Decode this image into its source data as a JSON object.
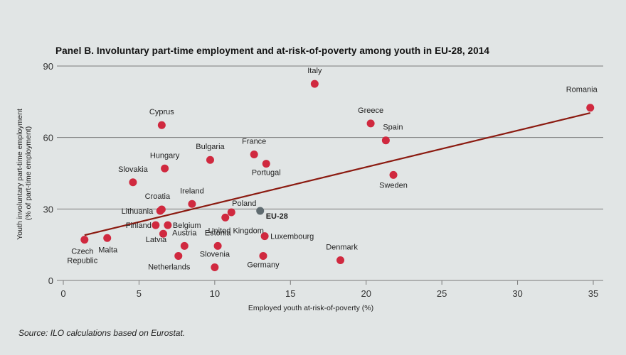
{
  "chart_data": {
    "type": "scatter",
    "title": "Panel B.  Involuntary part-time employment and at-risk-of-poverty among youth in EU-28, 2014",
    "xlabel": "Employed youth at-risk-of-poverty (%)",
    "ylabel_lines": [
      "Youth involuntary part-time employment",
      "(% of part-time employment)"
    ],
    "xlim": [
      0,
      35
    ],
    "ylim": [
      0,
      90
    ],
    "xticks": [
      0,
      5,
      10,
      15,
      20,
      25,
      30,
      35
    ],
    "yticks": [
      0,
      30,
      60,
      90
    ],
    "grid": "horizontal",
    "colors": {
      "points": "#d0293f",
      "eu28": "#5f6b70",
      "trend": "#8b1a10",
      "grid": "#7a7a7a"
    },
    "points": [
      {
        "name": "Italy",
        "x": 16.6,
        "y": 82.5
      },
      {
        "name": "Romania",
        "x": 34.8,
        "y": 72.5
      },
      {
        "name": "Greece",
        "x": 20.3,
        "y": 65.9
      },
      {
        "name": "Cyprus",
        "x": 6.5,
        "y": 65.2
      },
      {
        "name": "Spain",
        "x": 21.3,
        "y": 58.8
      },
      {
        "name": "France",
        "x": 12.6,
        "y": 52.9
      },
      {
        "name": "Bulgaria",
        "x": 9.7,
        "y": 50.6
      },
      {
        "name": "Portugal",
        "x": 13.4,
        "y": 49.0
      },
      {
        "name": "Hungary",
        "x": 6.7,
        "y": 47.0
      },
      {
        "name": "Sweden",
        "x": 21.8,
        "y": 44.3
      },
      {
        "name": "Slovakia",
        "x": 4.6,
        "y": 41.2
      },
      {
        "name": "Ireland",
        "x": 8.5,
        "y": 32.1
      },
      {
        "name": "Croatia",
        "x": 6.5,
        "y": 29.8
      },
      {
        "name": "Lithuania",
        "x": 6.4,
        "y": 29.2
      },
      {
        "name": "Poland",
        "x": 11.1,
        "y": 28.6
      },
      {
        "name": "EU-28",
        "x": 13.0,
        "y": 29.2,
        "highlight": true
      },
      {
        "name": "United Kingdom",
        "x": 10.7,
        "y": 26.4
      },
      {
        "name": "Finland",
        "x": 6.1,
        "y": 23.2
      },
      {
        "name": "Belgium",
        "x": 6.9,
        "y": 23.2
      },
      {
        "name": "Latvia",
        "x": 6.6,
        "y": 19.6
      },
      {
        "name": "Luxembourg",
        "x": 13.3,
        "y": 18.6
      },
      {
        "name": "Malta",
        "x": 2.9,
        "y": 17.8
      },
      {
        "name": "Czech Republic",
        "x": 1.4,
        "y": 17.1
      },
      {
        "name": "Austria",
        "x": 8.0,
        "y": 14.5
      },
      {
        "name": "Estonia",
        "x": 10.2,
        "y": 14.5
      },
      {
        "name": "Netherlands",
        "x": 7.6,
        "y": 10.3
      },
      {
        "name": "Germany",
        "x": 13.2,
        "y": 10.3
      },
      {
        "name": "Denmark",
        "x": 18.3,
        "y": 8.5
      },
      {
        "name": "Slovenia",
        "x": 10.0,
        "y": 5.5
      }
    ],
    "trendline": {
      "x": [
        1.4,
        34.8
      ],
      "y": [
        19.0,
        70.3
      ]
    }
  },
  "source": "Source: ILO calculations based on Eurostat."
}
